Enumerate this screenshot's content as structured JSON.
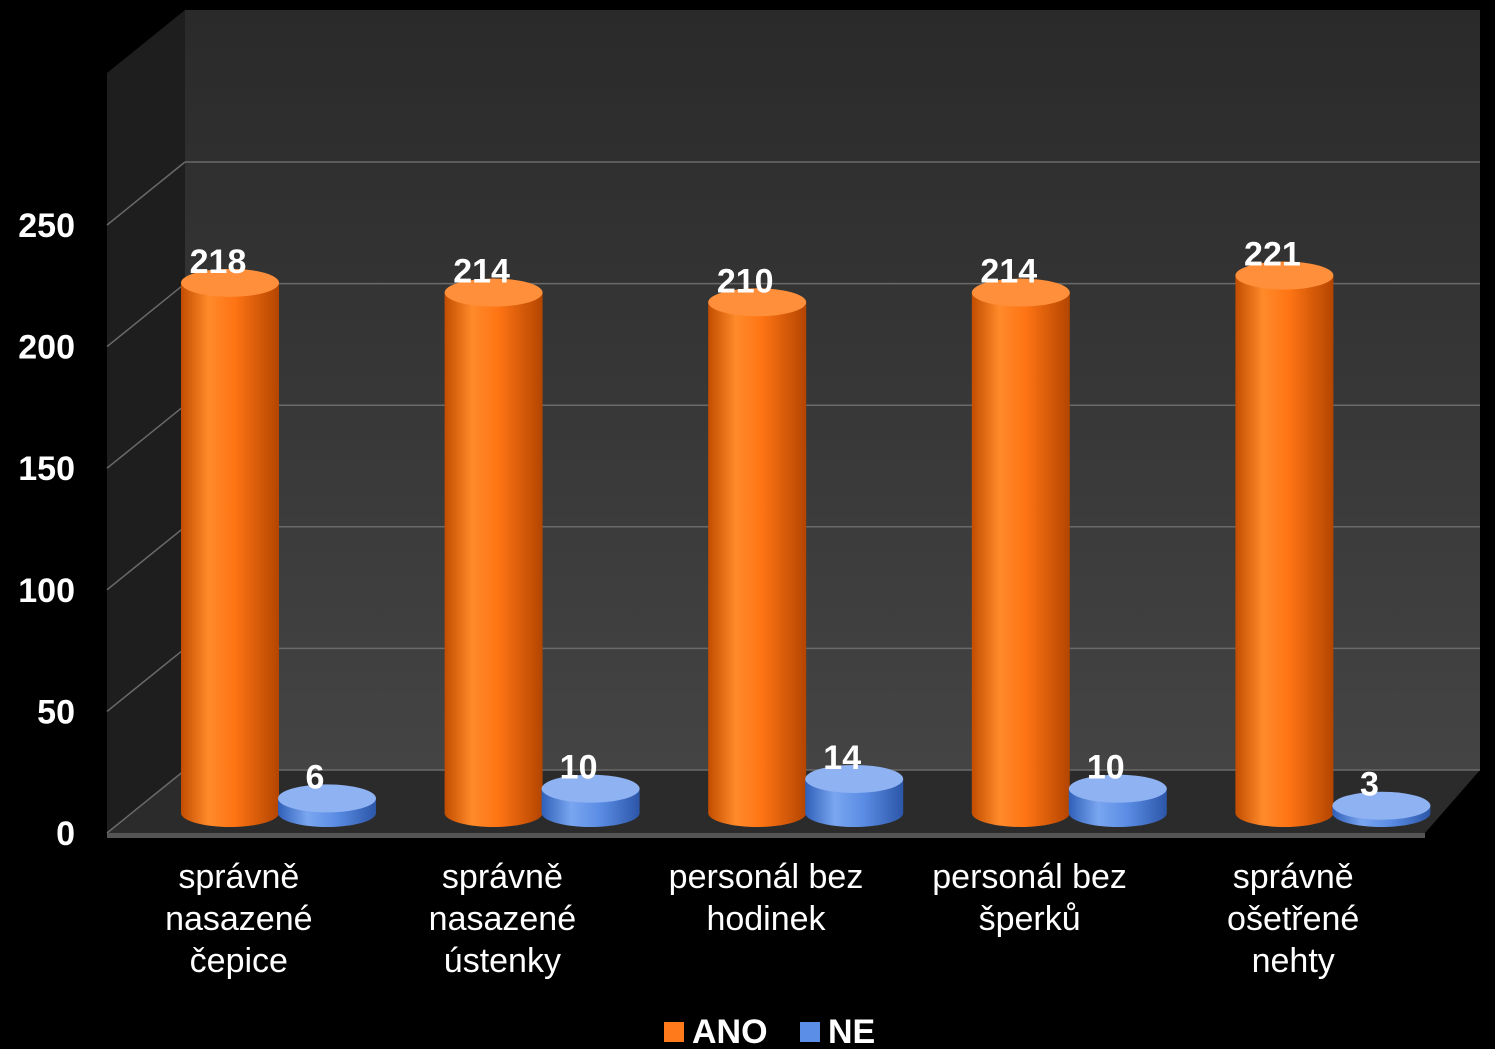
{
  "chart_data": {
    "type": "bar",
    "style": "3d-cylinder",
    "categories": [
      [
        "správně",
        "nasazené",
        "čepice"
      ],
      [
        "správně",
        "nasazené",
        "ústenky"
      ],
      [
        "personál bez",
        "hodinek"
      ],
      [
        "personál bez",
        "šperků"
      ],
      [
        "správně",
        "ošetřené",
        "nehty"
      ]
    ],
    "series": [
      {
        "name": "ANO",
        "values": [
          218,
          214,
          210,
          214,
          221
        ],
        "color": "#ff7a1a"
      },
      {
        "name": "NE",
        "values": [
          6,
          10,
          14,
          10,
          3
        ],
        "color": "#5b8ee6"
      }
    ],
    "ylim": [
      0,
      250
    ],
    "yticks": [
      0,
      50,
      100,
      150,
      200,
      250
    ],
    "grid": true,
    "legend": "bottom",
    "background": "#000000",
    "wall_color": "#3a3a3a"
  }
}
